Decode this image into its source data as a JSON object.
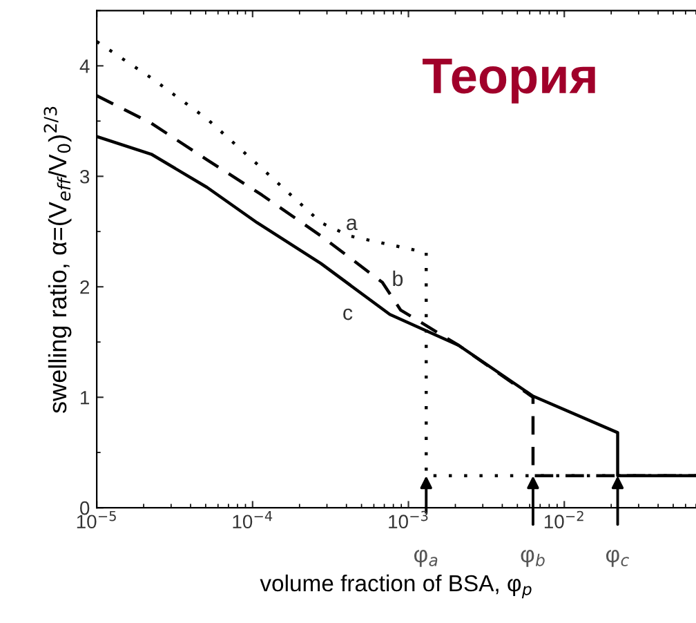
{
  "chart_data": {
    "type": "line",
    "title": "Теория",
    "xlabel": "volume fraction of BSA, φ$_{p}$",
    "ylabel": "swelling ratio, α=(V$_{eff}$/V$_{0}$)$^{2/3}$",
    "log": "x",
    "xlim": [
      1e-05,
      0.07
    ],
    "ylim": [
      0,
      4.5
    ],
    "xticks": [
      {
        "value": 1e-05,
        "label": "10$^{−5}$"
      },
      {
        "value": 0.0001,
        "label": "10$^{−4}$"
      },
      {
        "value": 0.001,
        "label": "10$^{−3}$"
      },
      {
        "value": 0.01,
        "label": "10$^{−2}$"
      }
    ],
    "yticks": [
      0,
      1,
      2,
      3,
      4
    ],
    "grid": false,
    "legend": false,
    "marker": "none",
    "series": [
      {
        "color": "#000000",
        "line_style": "dotted",
        "x": [
          1e-05,
          2.24e-05,
          5.1e-05,
          0.000115,
          0.000275,
          0.00042,
          0.0013,
          0.0013,
          0.07
        ],
        "values": [
          4.22,
          3.89,
          3.52,
          3.07,
          2.58,
          2.46,
          2.31,
          0.29,
          0.29
        ]
      },
      {
        "color": "#000000",
        "line_style": "dashed",
        "x": [
          1e-05,
          2.24e-05,
          5.1e-05,
          0.000115,
          0.000275,
          0.00068,
          0.00089,
          0.0021,
          0.0063,
          0.0063,
          0.07
        ],
        "values": [
          3.73,
          3.48,
          3.15,
          2.83,
          2.46,
          2.04,
          1.79,
          1.47,
          1.0,
          0.29,
          0.29
        ]
      },
      {
        "color": "#000000",
        "line_style": "solid",
        "x": [
          1e-05,
          2.24e-05,
          5.1e-05,
          0.000107,
          0.000275,
          0.00076,
          0.0021,
          0.0063,
          0.022,
          0.022,
          0.07
        ],
        "values": [
          3.36,
          3.2,
          2.9,
          2.58,
          2.21,
          1.75,
          1.47,
          1.01,
          0.68,
          0.29,
          0.29
        ]
      }
    ],
    "annotations": [
      {
        "text": "a",
        "x": 0.00042,
        "y": 2.46
      },
      {
        "text": "b",
        "x": 0.00068,
        "y": 2.04
      },
      {
        "text": "c",
        "x": 0.00076,
        "y": 1.75
      },
      {
        "text": "φ$_{a}$",
        "x": 0.0013,
        "y": 0.29
      },
      {
        "text": "φ$_{b}$",
        "x": 0.0063,
        "y": 0.29
      },
      {
        "text": "φ$_{c}$",
        "x": 0.022,
        "y": 0.29
      }
    ]
  }
}
